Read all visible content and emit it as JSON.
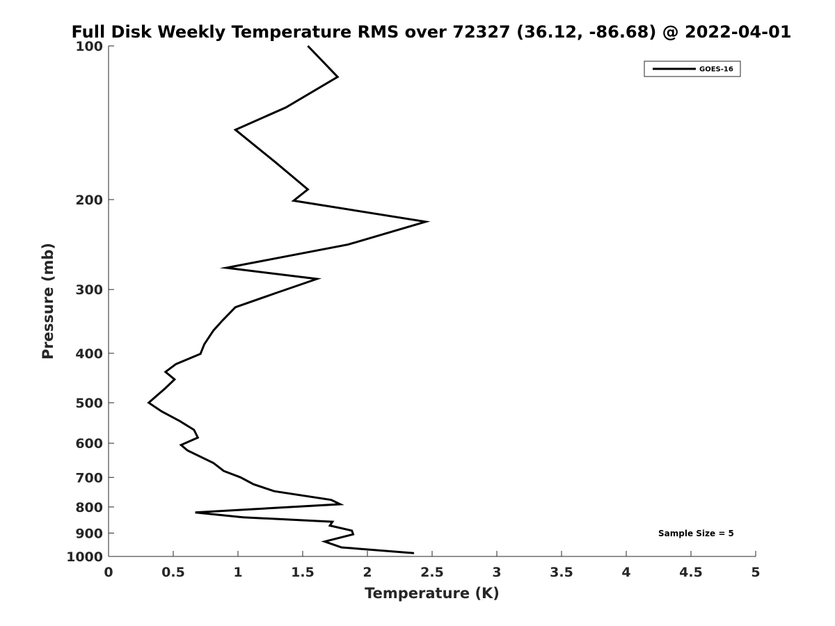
{
  "chart_data": {
    "type": "line",
    "title": "Full Disk Weekly Temperature RMS over 72327 (36.12, -86.68) @ 2022-04-01",
    "xlabel": "Temperature (K)",
    "ylabel": "Pressure (mb)",
    "xlim": [
      0,
      5
    ],
    "ylim": [
      100,
      1000
    ],
    "y_scale": "log",
    "y_reversed": true,
    "grid": false,
    "legend_position": "top-right",
    "x_ticks": [
      0,
      0.5,
      1,
      1.5,
      2,
      2.5,
      3,
      3.5,
      4,
      4.5,
      5
    ],
    "x_tick_labels": [
      "0",
      "0.5",
      "1",
      "1.5",
      "2",
      "2.5",
      "3",
      "3.5",
      "4",
      "4.5",
      "5"
    ],
    "y_ticks": [
      100,
      200,
      300,
      400,
      500,
      600,
      700,
      800,
      900,
      1000
    ],
    "y_tick_labels": [
      "100",
      "200",
      "300",
      "400",
      "500",
      "600",
      "700",
      "800",
      "900",
      "1000"
    ],
    "series": [
      {
        "name": "GOES-16",
        "color": "#000000",
        "x": [
          1.54,
          1.77,
          1.37,
          0.98,
          1.29,
          1.54,
          1.43,
          2.45,
          1.85,
          0.91,
          1.61,
          1.29,
          0.98,
          0.88,
          0.81,
          0.74,
          0.71,
          0.52,
          0.44,
          0.51,
          0.44,
          0.31,
          0.41,
          0.55,
          0.66,
          0.69,
          0.56,
          0.61,
          0.81,
          0.89,
          1.02,
          1.12,
          1.28,
          1.72,
          1.79,
          1.12,
          0.67,
          1.04,
          1.73,
          1.71,
          1.88,
          1.89,
          1.67,
          1.8,
          2.36
        ],
        "y": [
          100,
          115,
          132,
          146,
          169,
          191,
          201,
          221,
          245,
          272,
          286,
          305,
          325,
          345,
          361,
          384,
          401,
          420,
          435,
          450,
          468,
          500,
          520,
          543,
          565,
          585,
          605,
          620,
          656,
          680,
          700,
          722,
          745,
          775,
          790,
          808,
          820,
          838,
          855,
          870,
          890,
          905,
          935,
          960,
          985
        ]
      }
    ],
    "annotation": "Sample Size = 5"
  }
}
